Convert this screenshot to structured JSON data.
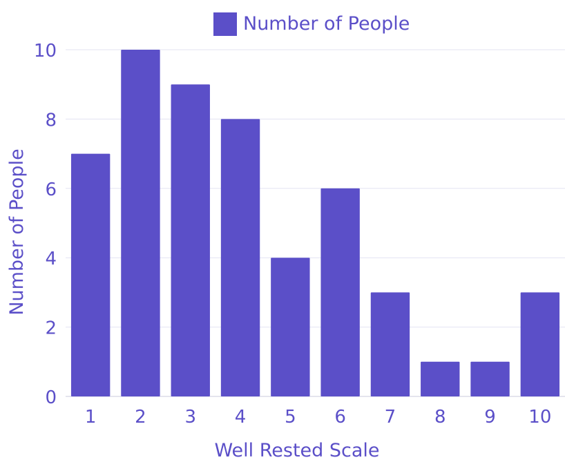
{
  "chart_data": {
    "type": "bar",
    "title": "",
    "xlabel": "Well Rested Scale",
    "ylabel": "Number of People",
    "categories": [
      "1",
      "2",
      "3",
      "4",
      "5",
      "6",
      "7",
      "8",
      "9",
      "10"
    ],
    "series": [
      {
        "name": "Number of People",
        "values": [
          7,
          10,
          9,
          8,
          4,
          6,
          3,
          1,
          1,
          3
        ]
      }
    ],
    "ylim": [
      0,
      10
    ],
    "yticks": [
      "0",
      "2",
      "4",
      "6",
      "8",
      "10"
    ],
    "grid": true,
    "legend_position": "top-center",
    "colors": {
      "bar": "#5b4fc8",
      "text": "#5b4fc8",
      "grid": "#e3e3f2",
      "axis": "#c8c8dc"
    }
  }
}
